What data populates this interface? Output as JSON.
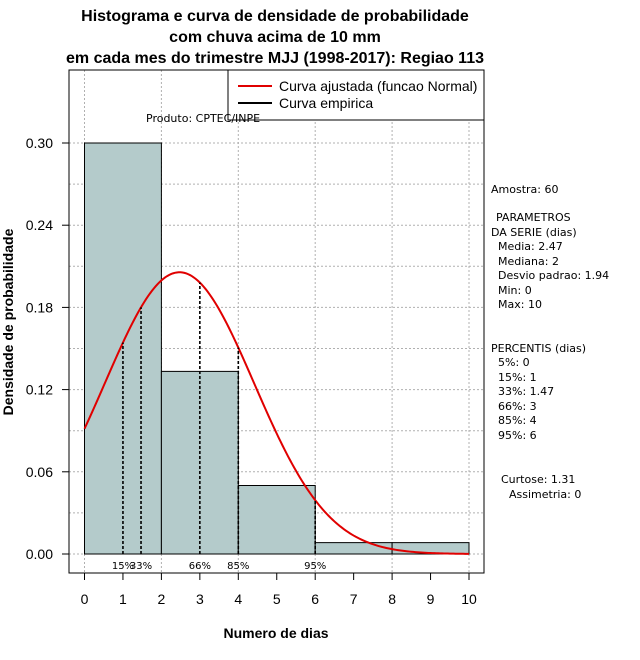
{
  "chart_data": {
    "type": "bar",
    "title_lines": [
      "Histograma e curva de densidade de probabilidade",
      "com chuva acima de 10 mm",
      "em cada mes do trimestre MJJ (1998-2017): Regiao 113"
    ],
    "xlabel": "Numero de dias",
    "ylabel": "Densidade de probabilidade",
    "xlim": [
      0,
      10
    ],
    "ylim": [
      0,
      0.3
    ],
    "x_ticks": [
      "0",
      "1",
      "2",
      "3",
      "4",
      "5",
      "6",
      "7",
      "8",
      "9",
      "10"
    ],
    "y_ticks": [
      "0.00",
      "0.06",
      "0.12",
      "0.18",
      "0.24",
      "0.30"
    ],
    "product_label": "Produto: CPTEC/INPE",
    "bins": [
      {
        "x0": 0,
        "x1": 2,
        "density": 0.3
      },
      {
        "x0": 2,
        "x1": 4,
        "density": 0.1333
      },
      {
        "x0": 4,
        "x1": 6,
        "density": 0.05
      },
      {
        "x0": 6,
        "x1": 8,
        "density": 0.0083
      },
      {
        "x0": 8,
        "x1": 10,
        "density": 0.0083
      }
    ],
    "normal_fit": {
      "mean": 2.47,
      "sd": 1.94
    },
    "percentile_lines": [
      {
        "label": "15%",
        "x": 1
      },
      {
        "label": "33%",
        "x": 1.47
      },
      {
        "label": "66%",
        "x": 3
      },
      {
        "label": "85%",
        "x": 4
      },
      {
        "label": "95%",
        "x": 6
      }
    ],
    "legend": [
      {
        "label": "Curva ajustada (funcao Normal)",
        "color": "#e00000"
      },
      {
        "label": "Curva empirica",
        "color": "#000000"
      }
    ],
    "colors": {
      "bar_fill": "#b4cbcb",
      "curve": "#e00000",
      "grid": "#b0b0b0"
    }
  },
  "stats": {
    "amostra": "Amostra: 60",
    "param_header_1": "PARAMETROS",
    "param_header_2": "DA SERIE (dias)",
    "media": "Media: 2.47",
    "mediana": "Mediana: 2",
    "desvio": "Desvio padrao: 1.94",
    "min": "Min: 0",
    "max": "Max: 10",
    "percentis_header": "PERCENTIS (dias)",
    "p5": "5%: 0",
    "p15": "15%: 1",
    "p33": "33%: 1.47",
    "p66": "66%: 3",
    "p85": "85%: 4",
    "p95": "95%: 6",
    "curtose": "Curtose: 1.31",
    "assimetria": "Assimetria: 0"
  }
}
